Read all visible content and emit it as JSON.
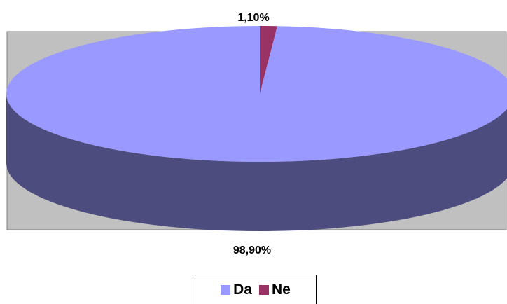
{
  "chart_data": {
    "type": "pie",
    "style": "3d",
    "slices": [
      {
        "name": "Da",
        "value": 98.9,
        "label": "98,90%",
        "color": "#9999FF",
        "side_color": "#4C4C7F"
      },
      {
        "name": "Ne",
        "value": 1.1,
        "label": "1,10%",
        "color": "#993366",
        "side_color": "#4C1933"
      }
    ],
    "plot_background": "#C0C0C0",
    "legend_position": "bottom"
  }
}
